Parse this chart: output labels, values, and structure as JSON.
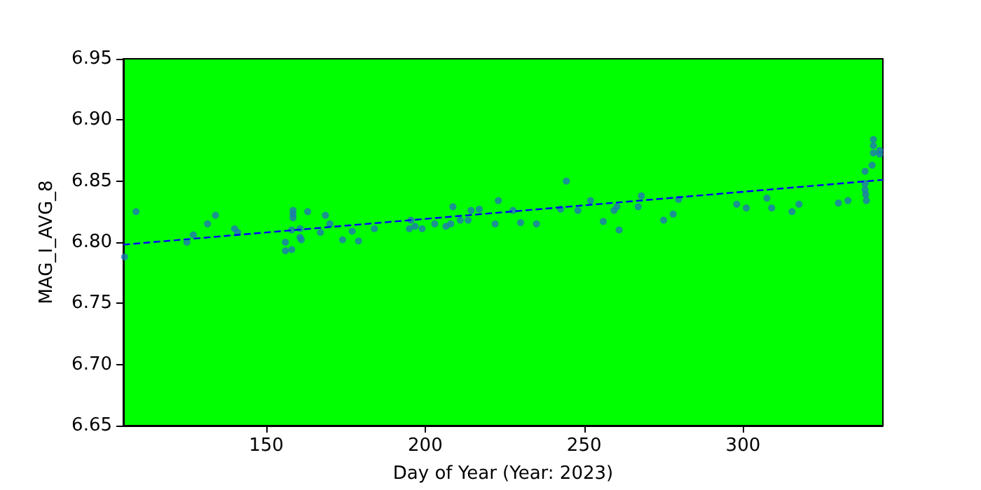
{
  "chart_data": {
    "type": "scatter",
    "xlabel": "Day of Year (Year: 2023)",
    "ylabel": "MAG_I_AVG_8",
    "xlim": [
      105,
      344
    ],
    "xticks": [
      150,
      200,
      250,
      300
    ],
    "ylim": [
      6.65,
      6.95
    ],
    "yticks": [
      6.65,
      {
        "value": 6.7,
        "label": "6.70"
      },
      6.75,
      {
        "value": 6.8,
        "label": "6.80"
      },
      6.85,
      {
        "value": 6.9,
        "label": "6.90"
      },
      6.95
    ],
    "grid": false,
    "marker": "circle",
    "series": [
      {
        "color": "#1f77b4",
        "x": [
          105.4,
          109,
          125,
          127,
          131.5,
          134,
          140,
          141,
          156,
          158,
          156,
          158,
          158.4,
          158.4,
          158.4,
          160.6,
          161,
          160.6,
          163,
          167,
          168.6,
          170,
          174,
          177,
          179,
          184,
          195,
          195.5,
          196.8,
          199,
          203,
          206.5,
          208,
          208.7,
          211,
          213.5,
          214.4,
          217,
          222,
          223,
          227.6,
          230,
          235,
          242.6,
          244.4,
          248,
          252,
          256,
          259.4,
          260.3,
          261,
          267,
          268,
          275,
          278,
          279.7,
          298,
          301,
          307.5,
          309,
          315.4,
          317.6,
          330,
          333,
          338.8,
          338.4,
          338.4,
          338.4,
          338.6,
          340.6,
          341,
          341,
          341,
          343,
          343
        ],
        "values": [
          6.788,
          6.825,
          6.8,
          6.806,
          6.815,
          6.822,
          6.811,
          6.808,
          6.793,
          6.794,
          6.8,
          6.81,
          6.82,
          6.823,
          6.826,
          6.804,
          6.802,
          6.811,
          6.825,
          6.808,
          6.822,
          6.815,
          6.802,
          6.809,
          6.801,
          6.811,
          6.811,
          6.818,
          6.813,
          6.811,
          6.815,
          6.813,
          6.815,
          6.829,
          6.818,
          6.818,
          6.826,
          6.827,
          6.815,
          6.834,
          6.826,
          6.816,
          6.815,
          6.827,
          6.85,
          6.826,
          6.834,
          6.817,
          6.826,
          6.829,
          6.81,
          6.829,
          6.838,
          6.818,
          6.823,
          6.835,
          6.831,
          6.828,
          6.836,
          6.828,
          6.825,
          6.831,
          6.832,
          6.834,
          6.834,
          6.858,
          6.848,
          6.843,
          6.839,
          6.863,
          6.884,
          6.879,
          6.873,
          6.875,
          6.872
        ]
      },
      {
        "type": "line",
        "color": "#0000ff",
        "line_style": "dashed",
        "marker": "none",
        "x": [
          105,
          344
        ],
        "values": [
          6.798,
          6.851
        ]
      }
    ]
  }
}
